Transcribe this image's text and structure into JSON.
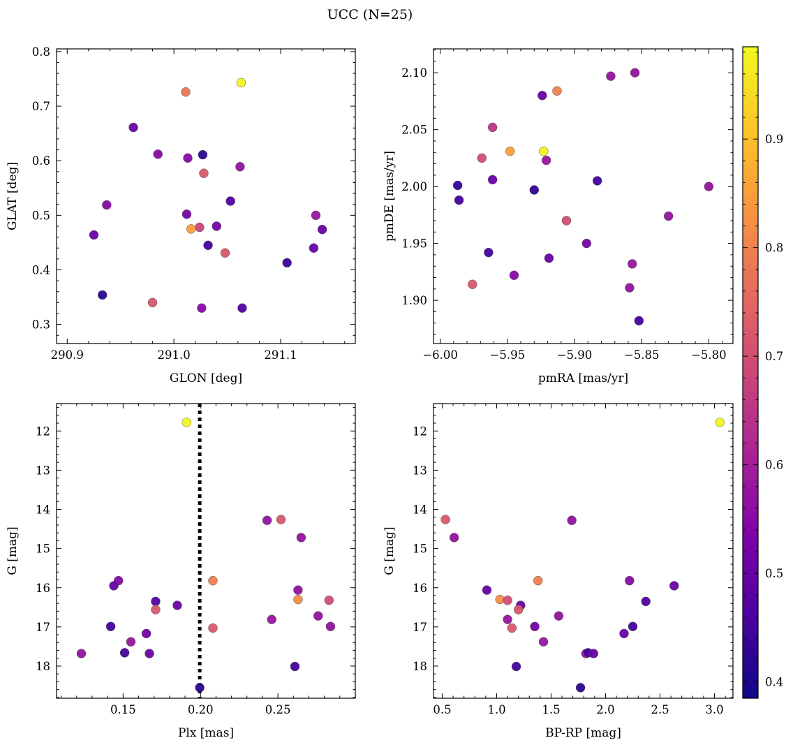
{
  "figure": {
    "title": "UCC (N=25)",
    "colorbar": {
      "range": [
        0.385,
        0.985
      ],
      "ticks": [
        0.4,
        0.5,
        0.6,
        0.7,
        0.8,
        0.9
      ],
      "tick_labels": [
        "0.4",
        "0.5",
        "0.6",
        "0.7",
        "0.8",
        "0.9"
      ],
      "colormap": "plasma"
    }
  },
  "chart_data": [
    {
      "type": "scatter",
      "xlabel": "GLON [deg]",
      "ylabel": "GLAT [deg]",
      "xlim": [
        290.89,
        291.17
      ],
      "ylim": [
        0.265,
        0.805
      ],
      "y_inverted": false,
      "x_ticks": [
        290.9,
        291.0,
        291.1
      ],
      "x_tick_labels": [
        "290.9",
        "291.0",
        "291.1"
      ],
      "y_ticks": [
        0.3,
        0.4,
        0.5,
        0.6,
        0.7,
        0.8
      ],
      "y_tick_labels": [
        "0.3",
        "0.4",
        "0.5",
        "0.6",
        "0.7",
        "0.8"
      ],
      "points": [
        {
          "x": 291.063,
          "y": 0.743,
          "c": 0.98
        },
        {
          "x": 291.011,
          "y": 0.726,
          "c": 0.78
        },
        {
          "x": 290.962,
          "y": 0.661,
          "c": 0.5
        },
        {
          "x": 290.985,
          "y": 0.612,
          "c": 0.55
        },
        {
          "x": 291.027,
          "y": 0.611,
          "c": 0.42
        },
        {
          "x": 291.013,
          "y": 0.605,
          "c": 0.55
        },
        {
          "x": 291.062,
          "y": 0.589,
          "c": 0.57
        },
        {
          "x": 291.028,
          "y": 0.577,
          "c": 0.72
        },
        {
          "x": 291.053,
          "y": 0.526,
          "c": 0.47
        },
        {
          "x": 290.937,
          "y": 0.519,
          "c": 0.55
        },
        {
          "x": 291.012,
          "y": 0.502,
          "c": 0.52
        },
        {
          "x": 291.133,
          "y": 0.5,
          "c": 0.58
        },
        {
          "x": 291.024,
          "y": 0.478,
          "c": 0.68
        },
        {
          "x": 291.04,
          "y": 0.48,
          "c": 0.52
        },
        {
          "x": 291.016,
          "y": 0.475,
          "c": 0.85
        },
        {
          "x": 291.139,
          "y": 0.474,
          "c": 0.5
        },
        {
          "x": 290.925,
          "y": 0.464,
          "c": 0.5
        },
        {
          "x": 291.032,
          "y": 0.445,
          "c": 0.45
        },
        {
          "x": 291.131,
          "y": 0.44,
          "c": 0.5
        },
        {
          "x": 291.048,
          "y": 0.431,
          "c": 0.72
        },
        {
          "x": 291.106,
          "y": 0.413,
          "c": 0.44
        },
        {
          "x": 290.933,
          "y": 0.354,
          "c": 0.42
        },
        {
          "x": 290.98,
          "y": 0.34,
          "c": 0.72
        },
        {
          "x": 291.026,
          "y": 0.33,
          "c": 0.55
        },
        {
          "x": 291.064,
          "y": 0.33,
          "c": 0.47
        }
      ]
    },
    {
      "type": "scatter",
      "xlabel": "pmRA [mas/yr]",
      "ylabel": "pmDE [mas/yr]",
      "xlim": [
        -6.005,
        -5.782
      ],
      "ylim": [
        1.862,
        2.121
      ],
      "y_inverted": false,
      "x_ticks": [
        -6.0,
        -5.95,
        -5.9,
        -5.85,
        -5.8
      ],
      "x_tick_labels": [
        "−6.00",
        "−5.95",
        "−5.90",
        "−5.85",
        "−5.80"
      ],
      "y_ticks": [
        1.9,
        1.95,
        2.0,
        2.05,
        2.1
      ],
      "y_tick_labels": [
        "1.90",
        "1.95",
        "2.00",
        "2.05",
        "2.10"
      ],
      "points": [
        {
          "x": -5.855,
          "y": 2.1,
          "c": 0.57
        },
        {
          "x": -5.873,
          "y": 2.097,
          "c": 0.57
        },
        {
          "x": -5.913,
          "y": 2.084,
          "c": 0.8
        },
        {
          "x": -5.924,
          "y": 2.08,
          "c": 0.5
        },
        {
          "x": -5.961,
          "y": 2.052,
          "c": 0.65
        },
        {
          "x": -5.948,
          "y": 2.031,
          "c": 0.85
        },
        {
          "x": -5.923,
          "y": 2.031,
          "c": 0.98
        },
        {
          "x": -5.969,
          "y": 2.025,
          "c": 0.7
        },
        {
          "x": -5.921,
          "y": 2.023,
          "c": 0.58
        },
        {
          "x": -5.961,
          "y": 2.006,
          "c": 0.5
        },
        {
          "x": -5.883,
          "y": 2.005,
          "c": 0.45
        },
        {
          "x": -5.987,
          "y": 2.001,
          "c": 0.43
        },
        {
          "x": -5.8,
          "y": 2.0,
          "c": 0.57
        },
        {
          "x": -5.93,
          "y": 1.997,
          "c": 0.43
        },
        {
          "x": -5.986,
          "y": 1.988,
          "c": 0.45
        },
        {
          "x": -5.83,
          "y": 1.974,
          "c": 0.57
        },
        {
          "x": -5.906,
          "y": 1.97,
          "c": 0.7
        },
        {
          "x": -5.891,
          "y": 1.95,
          "c": 0.52
        },
        {
          "x": -5.964,
          "y": 1.942,
          "c": 0.45
        },
        {
          "x": -5.919,
          "y": 1.937,
          "c": 0.5
        },
        {
          "x": -5.857,
          "y": 1.932,
          "c": 0.58
        },
        {
          "x": -5.945,
          "y": 1.922,
          "c": 0.55
        },
        {
          "x": -5.976,
          "y": 1.914,
          "c": 0.72
        },
        {
          "x": -5.859,
          "y": 1.911,
          "c": 0.57
        },
        {
          "x": -5.852,
          "y": 1.882,
          "c": 0.45
        }
      ]
    },
    {
      "type": "scatter",
      "xlabel": "Plx [mas]",
      "ylabel": "G [mag]",
      "xlim": [
        0.107,
        0.3
      ],
      "ylim": [
        11.3,
        18.82
      ],
      "y_inverted": true,
      "vline": {
        "x": 0.1995,
        "style": "dotted"
      },
      "x_ticks": [
        0.15,
        0.2,
        0.25
      ],
      "x_tick_labels": [
        "0.15",
        "0.20",
        "0.25"
      ],
      "y_ticks": [
        12,
        13,
        14,
        15,
        16,
        17,
        18
      ],
      "y_tick_labels": [
        "12",
        "13",
        "14",
        "15",
        "16",
        "17",
        "18"
      ],
      "points": [
        {
          "x": 0.191,
          "y": 11.78,
          "c": 0.98
        },
        {
          "x": 0.243,
          "y": 14.28,
          "c": 0.57
        },
        {
          "x": 0.252,
          "y": 14.26,
          "c": 0.72
        },
        {
          "x": 0.265,
          "y": 14.72,
          "c": 0.57
        },
        {
          "x": 0.147,
          "y": 15.82,
          "c": 0.55
        },
        {
          "x": 0.208,
          "y": 15.82,
          "c": 0.8
        },
        {
          "x": 0.144,
          "y": 15.95,
          "c": 0.5
        },
        {
          "x": 0.263,
          "y": 16.06,
          "c": 0.57
        },
        {
          "x": 0.263,
          "y": 16.3,
          "c": 0.82
        },
        {
          "x": 0.283,
          "y": 16.32,
          "c": 0.7
        },
        {
          "x": 0.171,
          "y": 16.35,
          "c": 0.47
        },
        {
          "x": 0.185,
          "y": 16.45,
          "c": 0.5
        },
        {
          "x": 0.171,
          "y": 16.56,
          "c": 0.72
        },
        {
          "x": 0.276,
          "y": 16.72,
          "c": 0.57
        },
        {
          "x": 0.246,
          "y": 16.81,
          "c": 0.58
        },
        {
          "x": 0.142,
          "y": 16.99,
          "c": 0.45
        },
        {
          "x": 0.284,
          "y": 16.99,
          "c": 0.57
        },
        {
          "x": 0.208,
          "y": 17.03,
          "c": 0.72
        },
        {
          "x": 0.165,
          "y": 17.17,
          "c": 0.52
        },
        {
          "x": 0.155,
          "y": 17.38,
          "c": 0.58
        },
        {
          "x": 0.123,
          "y": 17.68,
          "c": 0.57
        },
        {
          "x": 0.151,
          "y": 17.66,
          "c": 0.45
        },
        {
          "x": 0.167,
          "y": 17.68,
          "c": 0.5
        },
        {
          "x": 0.261,
          "y": 18.01,
          "c": 0.45
        },
        {
          "x": 0.1995,
          "y": 18.55,
          "c": 0.42
        }
      ]
    },
    {
      "type": "scatter",
      "xlabel": "BP-RP [mag]",
      "ylabel": "G [mag]",
      "xlim": [
        0.42,
        3.17
      ],
      "ylim": [
        11.3,
        18.82
      ],
      "y_inverted": true,
      "x_ticks": [
        0.5,
        1.0,
        1.5,
        2.0,
        2.5,
        3.0
      ],
      "x_tick_labels": [
        "0.5",
        "1.0",
        "1.5",
        "2.0",
        "2.5",
        "3.0"
      ],
      "y_ticks": [
        12,
        13,
        14,
        15,
        16,
        17,
        18
      ],
      "y_tick_labels": [
        "12",
        "13",
        "14",
        "15",
        "16",
        "17",
        "18"
      ],
      "points": [
        {
          "x": 3.05,
          "y": 11.78,
          "c": 0.98
        },
        {
          "x": 0.53,
          "y": 14.26,
          "c": 0.72
        },
        {
          "x": 1.69,
          "y": 14.28,
          "c": 0.57
        },
        {
          "x": 0.61,
          "y": 14.72,
          "c": 0.57
        },
        {
          "x": 1.38,
          "y": 15.82,
          "c": 0.8
        },
        {
          "x": 2.22,
          "y": 15.82,
          "c": 0.55
        },
        {
          "x": 2.63,
          "y": 15.95,
          "c": 0.5
        },
        {
          "x": 0.91,
          "y": 16.06,
          "c": 0.5
        },
        {
          "x": 1.03,
          "y": 16.3,
          "c": 0.82
        },
        {
          "x": 1.1,
          "y": 16.32,
          "c": 0.7
        },
        {
          "x": 2.37,
          "y": 16.35,
          "c": 0.47
        },
        {
          "x": 1.22,
          "y": 16.45,
          "c": 0.5
        },
        {
          "x": 1.2,
          "y": 16.56,
          "c": 0.72
        },
        {
          "x": 1.57,
          "y": 16.72,
          "c": 0.57
        },
        {
          "x": 1.1,
          "y": 16.81,
          "c": 0.58
        },
        {
          "x": 1.35,
          "y": 16.99,
          "c": 0.52
        },
        {
          "x": 2.25,
          "y": 16.99,
          "c": 0.45
        },
        {
          "x": 1.14,
          "y": 17.03,
          "c": 0.72
        },
        {
          "x": 2.17,
          "y": 17.17,
          "c": 0.5
        },
        {
          "x": 1.43,
          "y": 17.38,
          "c": 0.58
        },
        {
          "x": 1.82,
          "y": 17.68,
          "c": 0.57
        },
        {
          "x": 1.84,
          "y": 17.66,
          "c": 0.45
        },
        {
          "x": 1.89,
          "y": 17.68,
          "c": 0.5
        },
        {
          "x": 1.18,
          "y": 18.01,
          "c": 0.45
        },
        {
          "x": 1.77,
          "y": 18.55,
          "c": 0.42
        }
      ]
    }
  ]
}
